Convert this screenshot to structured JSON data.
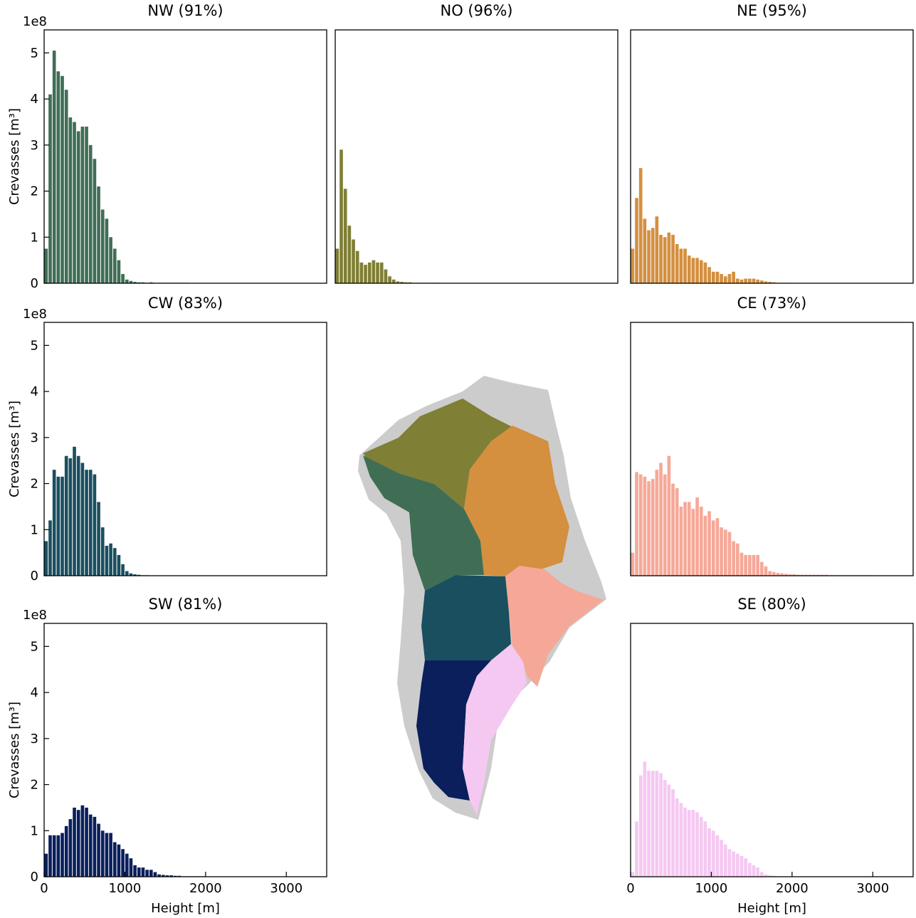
{
  "chart_data": [
    {
      "type": "histogram",
      "title": "NW (91%)",
      "color": "#3f6e55",
      "ylabel": "Crevasses [m³]",
      "offset_text": "1e8",
      "bins": [
        0,
        50,
        100,
        150,
        200,
        250,
        300,
        350,
        400,
        450,
        500,
        550,
        600,
        650,
        700,
        750,
        800,
        850,
        900,
        950,
        1000,
        1050,
        1100,
        1150,
        1200,
        1250,
        1300,
        1350,
        1400,
        1450,
        1500,
        1550,
        1600,
        1650,
        1700,
        1750,
        1800,
        1850,
        1900,
        1950,
        2000
      ],
      "values": [
        0.75,
        4.1,
        5.05,
        4.6,
        4.5,
        4.2,
        3.6,
        3.5,
        3.3,
        3.4,
        3.4,
        3.0,
        2.7,
        2.1,
        1.6,
        1.4,
        1.0,
        0.75,
        0.5,
        0.2,
        0.08,
        0.05,
        0.03,
        0.02,
        0.02,
        0.01,
        0.02,
        0.01,
        0.01,
        0.01,
        0.01,
        0.01,
        0.01,
        0.01,
        0.01,
        0.01,
        0,
        0,
        0,
        0
      ],
      "xlim": [
        0,
        3500
      ],
      "ylim": [
        0,
        5.5
      ],
      "yticks": [
        0,
        1,
        2,
        3,
        4,
        5
      ]
    },
    {
      "type": "histogram",
      "title": "NO (96%)",
      "color": "#7f7f35",
      "bins": [
        0,
        50,
        100,
        150,
        200,
        250,
        300,
        350,
        400,
        450,
        500,
        550,
        600,
        650,
        700,
        750,
        800,
        850,
        900,
        950,
        1000,
        1050,
        1100,
        1150,
        1200,
        1250,
        1300,
        1350,
        1400,
        1450,
        1500,
        1550,
        1600,
        1650,
        1700,
        1750,
        1800,
        1850,
        1900,
        1950,
        2000
      ],
      "values": [
        0.75,
        2.9,
        2.05,
        1.25,
        0.95,
        0.7,
        0.45,
        0.4,
        0.45,
        0.5,
        0.45,
        0.45,
        0.3,
        0.15,
        0.08,
        0.04,
        0.03,
        0.02,
        0.02,
        0.01,
        0.01,
        0.01,
        0.01,
        0.01,
        0.01,
        0.01,
        0,
        0,
        0,
        0,
        0,
        0,
        0,
        0,
        0,
        0,
        0,
        0,
        0,
        0
      ],
      "xlim": [
        0,
        3500
      ],
      "ylim": [
        0,
        5.5
      ]
    },
    {
      "type": "histogram",
      "title": "NE (95%)",
      "color": "#d48f3f",
      "bins": [
        0,
        50,
        100,
        150,
        200,
        250,
        300,
        350,
        400,
        450,
        500,
        550,
        600,
        650,
        700,
        750,
        800,
        850,
        900,
        950,
        1000,
        1050,
        1100,
        1150,
        1200,
        1250,
        1300,
        1350,
        1400,
        1450,
        1500,
        1550,
        1600,
        1650,
        1700,
        1750,
        1800,
        1850,
        1900,
        1950,
        2000
      ],
      "values": [
        0.75,
        1.85,
        2.5,
        1.4,
        1.15,
        1.2,
        1.45,
        1.05,
        1.0,
        1.1,
        1.05,
        0.85,
        0.75,
        0.75,
        0.6,
        0.55,
        0.55,
        0.5,
        0.45,
        0.35,
        0.25,
        0.25,
        0.2,
        0.15,
        0.2,
        0.25,
        0.1,
        0.08,
        0.1,
        0.1,
        0.1,
        0.08,
        0.06,
        0.04,
        0.03,
        0.02,
        0.01,
        0.01,
        0.01,
        0.01
      ],
      "xlim": [
        0,
        3500
      ],
      "ylim": [
        0,
        5.5
      ]
    },
    {
      "type": "histogram",
      "title": "CW (83%)",
      "color": "#1a4f60",
      "ylabel": "Crevasses [m³]",
      "offset_text": "1e8",
      "bins": [
        0,
        50,
        100,
        150,
        200,
        250,
        300,
        350,
        400,
        450,
        500,
        550,
        600,
        650,
        700,
        750,
        800,
        850,
        900,
        950,
        1000,
        1050,
        1100,
        1150,
        1200,
        1250,
        1300,
        1350,
        1400,
        1450,
        1500,
        1550,
        1600,
        1650,
        1700,
        1750,
        1800,
        1850,
        1900,
        1950,
        2000
      ],
      "values": [
        0.75,
        1.2,
        2.3,
        2.15,
        2.15,
        2.6,
        2.55,
        2.8,
        2.6,
        2.45,
        2.3,
        2.3,
        2.2,
        1.6,
        1.05,
        0.65,
        0.7,
        0.6,
        0.45,
        0.25,
        0.1,
        0.05,
        0.03,
        0.02,
        0.01,
        0.01,
        0,
        0,
        0,
        0,
        0,
        0,
        0,
        0,
        0,
        0,
        0,
        0,
        0,
        0
      ],
      "xlim": [
        0,
        3500
      ],
      "ylim": [
        0,
        5.5
      ],
      "yticks": [
        0,
        1,
        2,
        3,
        4,
        5
      ]
    },
    {
      "type": "histogram",
      "title": "CE (73%)",
      "color": "#f6a898",
      "bins": [
        0,
        50,
        100,
        150,
        200,
        250,
        300,
        350,
        400,
        450,
        500,
        550,
        600,
        650,
        700,
        750,
        800,
        850,
        900,
        950,
        1000,
        1050,
        1100,
        1150,
        1200,
        1250,
        1300,
        1350,
        1400,
        1450,
        1500,
        1550,
        1600,
        1650,
        1700,
        1750,
        1800,
        1850,
        1900,
        1950,
        2000,
        2050,
        2100,
        2150,
        2200,
        2250,
        2300,
        2350,
        2400,
        2450,
        2500,
        2550,
        2600,
        2650,
        2700,
        2750,
        2800,
        2850,
        2900,
        2950,
        3000
      ],
      "values": [
        0.5,
        2.25,
        2.2,
        2.15,
        2.05,
        2.1,
        2.3,
        2.45,
        2.2,
        2.6,
        2.0,
        1.9,
        1.5,
        1.6,
        1.6,
        1.45,
        1.7,
        1.5,
        1.3,
        1.4,
        1.2,
        1.25,
        1.05,
        1.0,
        0.95,
        0.75,
        0.7,
        0.5,
        0.45,
        0.45,
        0.45,
        0.45,
        0.3,
        0.2,
        0.1,
        0.08,
        0.06,
        0.05,
        0.04,
        0.03,
        0.03,
        0.02,
        0.02,
        0.02,
        0.02,
        0.02,
        0.02,
        0.02,
        0.02,
        0.01,
        0.01,
        0.01,
        0.01,
        0.01,
        0.01,
        0.01,
        0.01,
        0.01,
        0.01,
        0.01
      ],
      "xlim": [
        0,
        3500
      ],
      "ylim": [
        0,
        5.5
      ]
    },
    {
      "type": "histogram",
      "title": "SW (81%)",
      "color": "#0a1f5c",
      "ylabel": "Crevasses [m³]",
      "offset_text": "1e8",
      "xlabel": "Height [m]",
      "bins": [
        0,
        50,
        100,
        150,
        200,
        250,
        300,
        350,
        400,
        450,
        500,
        550,
        600,
        650,
        700,
        750,
        800,
        850,
        900,
        950,
        1000,
        1050,
        1100,
        1150,
        1200,
        1250,
        1300,
        1350,
        1400,
        1450,
        1500,
        1550,
        1600,
        1650,
        1700,
        1750,
        1800,
        1850,
        1900,
        1950,
        2000
      ],
      "values": [
        0.5,
        0.9,
        0.9,
        0.9,
        0.95,
        1.1,
        1.25,
        1.5,
        1.45,
        1.55,
        1.5,
        1.35,
        1.3,
        1.15,
        1.0,
        0.95,
        0.95,
        0.75,
        0.7,
        0.6,
        0.5,
        0.4,
        0.25,
        0.2,
        0.2,
        0.15,
        0.15,
        0.1,
        0.05,
        0.04,
        0.03,
        0.03,
        0.02,
        0.02,
        0.01,
        0.01,
        0.01,
        0.01,
        0.01,
        0.01
      ],
      "xlim": [
        0,
        3500
      ],
      "ylim": [
        0,
        5.5
      ],
      "yticks": [
        0,
        1,
        2,
        3,
        4,
        5
      ],
      "xticks": [
        0,
        1000,
        2000,
        3000
      ]
    },
    {
      "type": "histogram",
      "title": "SE (80%)",
      "color": "#f5c8f2",
      "xlabel": "Height [m]",
      "bins": [
        0,
        50,
        100,
        150,
        200,
        250,
        300,
        350,
        400,
        450,
        500,
        550,
        600,
        650,
        700,
        750,
        800,
        850,
        900,
        950,
        1000,
        1050,
        1100,
        1150,
        1200,
        1250,
        1300,
        1350,
        1400,
        1450,
        1500,
        1550,
        1600,
        1650,
        1700,
        1750,
        1800,
        1850,
        1900,
        1950,
        2000
      ],
      "values": [
        0.1,
        1.2,
        2.2,
        2.5,
        2.3,
        2.3,
        2.3,
        2.25,
        2.1,
        2.0,
        1.9,
        1.7,
        1.6,
        1.5,
        1.45,
        1.45,
        1.4,
        1.3,
        1.2,
        1.05,
        1.0,
        0.9,
        0.8,
        0.7,
        0.6,
        0.55,
        0.5,
        0.45,
        0.4,
        0.3,
        0.25,
        0.2,
        0.1,
        0.05,
        0.03,
        0.02,
        0.01,
        0,
        0,
        0
      ],
      "xlim": [
        0,
        3500
      ],
      "ylim": [
        0,
        5.5
      ],
      "xticks": [
        0,
        1000,
        2000,
        3000
      ]
    }
  ]
}
